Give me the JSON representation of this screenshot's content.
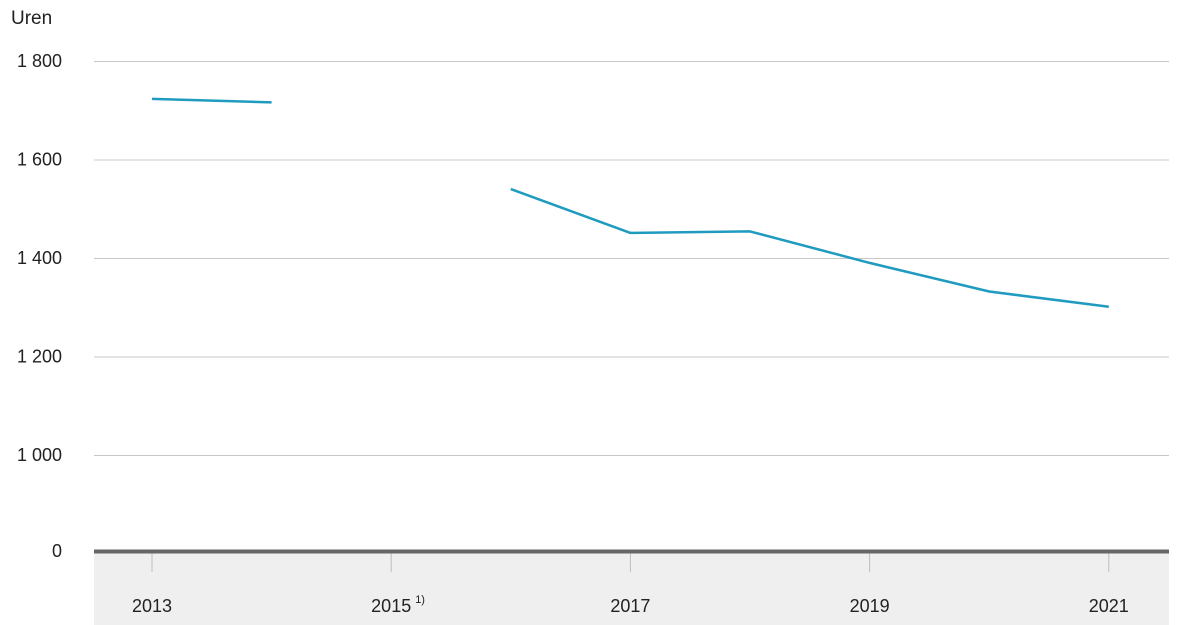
{
  "chart_data": {
    "type": "line",
    "ylabel": "Uren",
    "x": [
      2013,
      2014,
      2015,
      2016,
      2017,
      2018,
      2019,
      2020,
      2021
    ],
    "series": [
      {
        "values": [
          1723,
          1716,
          null,
          1540,
          1451,
          1454,
          1390,
          1332,
          1301
        ]
      }
    ],
    "x_ticks": [
      {
        "value": 2013,
        "label": "2013",
        "note": ""
      },
      {
        "value": 2015,
        "label": "2015",
        "note": "1)"
      },
      {
        "value": 2017,
        "label": "2017",
        "note": ""
      },
      {
        "value": 2019,
        "label": "2019",
        "note": ""
      },
      {
        "value": 2021,
        "label": "2021",
        "note": ""
      }
    ],
    "y_ticks": [
      {
        "value": 0,
        "label": "0"
      },
      {
        "value": 1000,
        "label": "1 000"
      },
      {
        "value": 1200,
        "label": "1 200"
      },
      {
        "value": 1400,
        "label": "1 400"
      },
      {
        "value": 1600,
        "label": "1 600"
      },
      {
        "value": 1800,
        "label": "1 800"
      }
    ],
    "ylim": [
      0,
      1800
    ],
    "y_axis_break": true,
    "grid": true,
    "legend": "none",
    "colors": {
      "line": "#1f9bbf",
      "grid": "#c8c8c8",
      "baseline": "#666666",
      "axis_band": "#efefef",
      "text": "#222222"
    }
  }
}
